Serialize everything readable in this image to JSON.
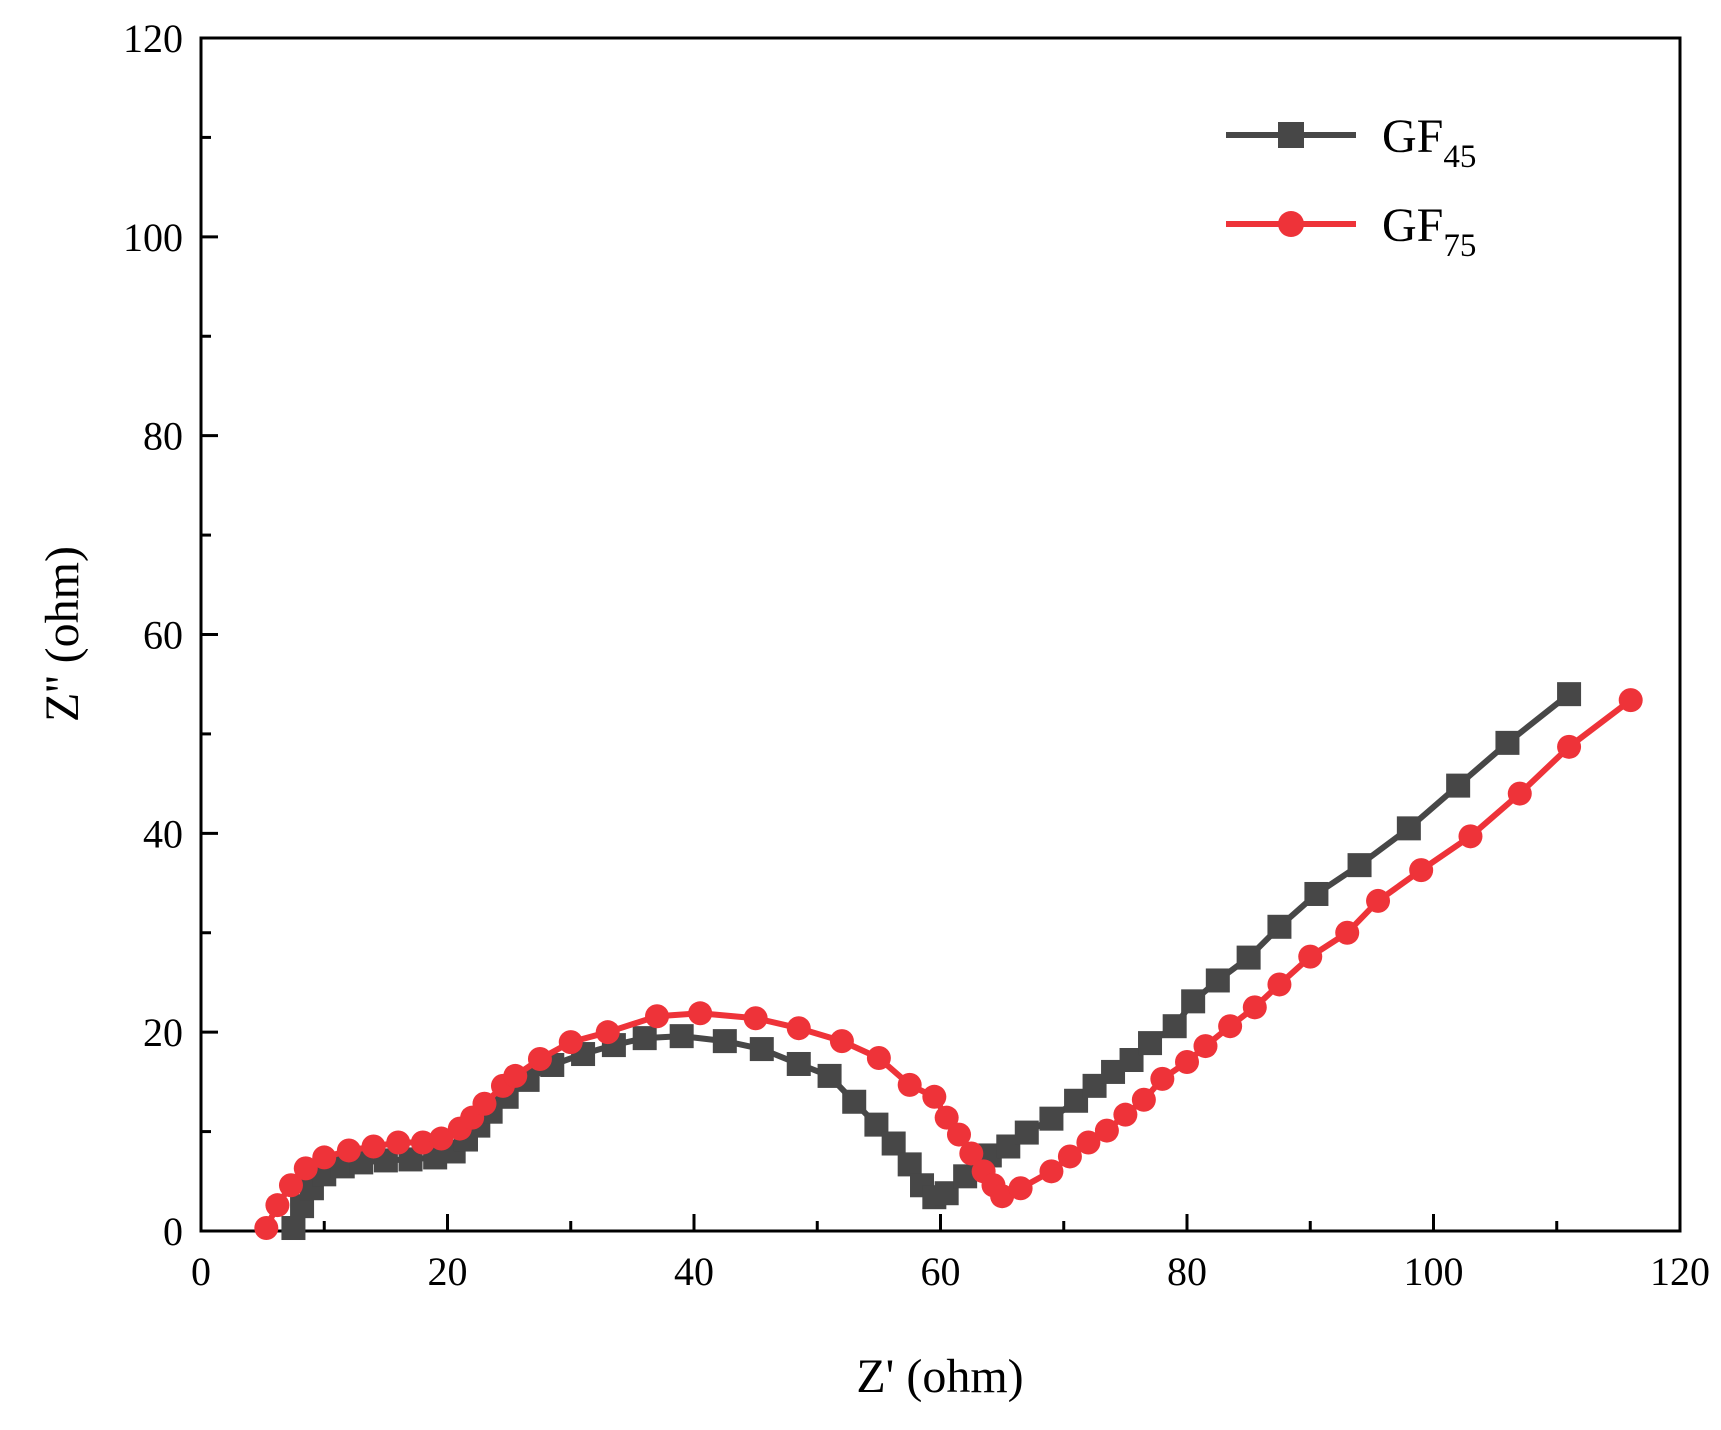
{
  "chart_data": {
    "type": "line",
    "title": "",
    "xlabel": "Z' (ohm)",
    "ylabel": "Z'' (ohm)",
    "xlim": [
      0,
      120
    ],
    "ylim": [
      0,
      120
    ],
    "xticks": [
      0,
      20,
      40,
      60,
      80,
      100,
      120
    ],
    "yticks": [
      0,
      20,
      40,
      60,
      80,
      100,
      120
    ],
    "grid": false,
    "legend_position": "top-right",
    "series": [
      {
        "name": "GF45",
        "label_main": "GF",
        "label_sub": "45",
        "color": "#474747",
        "marker": "square",
        "points": [
          [
            7.5,
            0.3
          ],
          [
            8.2,
            2.5
          ],
          [
            9.0,
            4.3
          ],
          [
            10.0,
            5.7
          ],
          [
            11.5,
            6.5
          ],
          [
            13.0,
            6.9
          ],
          [
            15.0,
            7.1
          ],
          [
            17.0,
            7.2
          ],
          [
            19.0,
            7.4
          ],
          [
            20.5,
            8.0
          ],
          [
            21.5,
            9.2
          ],
          [
            22.5,
            10.6
          ],
          [
            23.5,
            12.0
          ],
          [
            24.8,
            13.5
          ],
          [
            26.5,
            15.2
          ],
          [
            28.5,
            16.7
          ],
          [
            31.0,
            17.8
          ],
          [
            33.5,
            18.7
          ],
          [
            36.0,
            19.4
          ],
          [
            39.0,
            19.6
          ],
          [
            42.5,
            19.1
          ],
          [
            45.5,
            18.3
          ],
          [
            48.5,
            16.8
          ],
          [
            51.0,
            15.6
          ],
          [
            53.0,
            13.0
          ],
          [
            54.8,
            10.7
          ],
          [
            56.2,
            8.8
          ],
          [
            57.5,
            6.7
          ],
          [
            58.5,
            4.6
          ],
          [
            59.5,
            3.4
          ],
          [
            60.5,
            3.8
          ],
          [
            62.0,
            5.5
          ],
          [
            64.0,
            7.6
          ],
          [
            65.5,
            8.5
          ],
          [
            67.0,
            9.9
          ],
          [
            69.0,
            11.3
          ],
          [
            71.0,
            13.1
          ],
          [
            72.5,
            14.6
          ],
          [
            74.0,
            16.0
          ],
          [
            75.5,
            17.2
          ],
          [
            77.0,
            18.9
          ],
          [
            79.0,
            20.6
          ],
          [
            80.5,
            23.1
          ],
          [
            82.5,
            25.2
          ],
          [
            85.0,
            27.5
          ],
          [
            87.5,
            30.6
          ],
          [
            90.5,
            33.9
          ],
          [
            94.0,
            36.8
          ],
          [
            98.0,
            40.5
          ],
          [
            102.0,
            44.8
          ],
          [
            106.0,
            49.1
          ],
          [
            111.0,
            54.0
          ]
        ]
      },
      {
        "name": "GF75",
        "label_main": "GF",
        "label_sub": "75",
        "color": "#ee3339",
        "marker": "circle",
        "points": [
          [
            5.3,
            0.3
          ],
          [
            6.2,
            2.6
          ],
          [
            7.3,
            4.6
          ],
          [
            8.5,
            6.3
          ],
          [
            10.0,
            7.4
          ],
          [
            12.0,
            8.1
          ],
          [
            14.0,
            8.5
          ],
          [
            16.0,
            8.9
          ],
          [
            18.0,
            8.9
          ],
          [
            19.5,
            9.3
          ],
          [
            21.0,
            10.3
          ],
          [
            22.0,
            11.4
          ],
          [
            23.0,
            12.8
          ],
          [
            24.5,
            14.6
          ],
          [
            25.5,
            15.6
          ],
          [
            27.5,
            17.3
          ],
          [
            30.0,
            19.0
          ],
          [
            33.0,
            20.0
          ],
          [
            37.0,
            21.6
          ],
          [
            40.5,
            21.9
          ],
          [
            45.0,
            21.4
          ],
          [
            48.5,
            20.4
          ],
          [
            52.0,
            19.1
          ],
          [
            55.0,
            17.4
          ],
          [
            57.5,
            14.7
          ],
          [
            59.5,
            13.5
          ],
          [
            60.5,
            11.4
          ],
          [
            61.5,
            9.7
          ],
          [
            62.5,
            7.8
          ],
          [
            63.5,
            6.0
          ],
          [
            64.3,
            4.6
          ],
          [
            65.0,
            3.5
          ],
          [
            66.5,
            4.3
          ],
          [
            69.0,
            6.0
          ],
          [
            70.5,
            7.5
          ],
          [
            72.0,
            8.9
          ],
          [
            73.5,
            10.1
          ],
          [
            75.0,
            11.7
          ],
          [
            76.5,
            13.2
          ],
          [
            78.0,
            15.3
          ],
          [
            80.0,
            17.0
          ],
          [
            81.5,
            18.6
          ],
          [
            83.5,
            20.6
          ],
          [
            85.5,
            22.5
          ],
          [
            87.5,
            24.8
          ],
          [
            90.0,
            27.6
          ],
          [
            93.0,
            30.0
          ],
          [
            95.5,
            33.2
          ],
          [
            99.0,
            36.3
          ],
          [
            103.0,
            39.7
          ],
          [
            107.0,
            44.0
          ],
          [
            111.0,
            48.7
          ],
          [
            116.0,
            53.4
          ]
        ]
      }
    ]
  }
}
